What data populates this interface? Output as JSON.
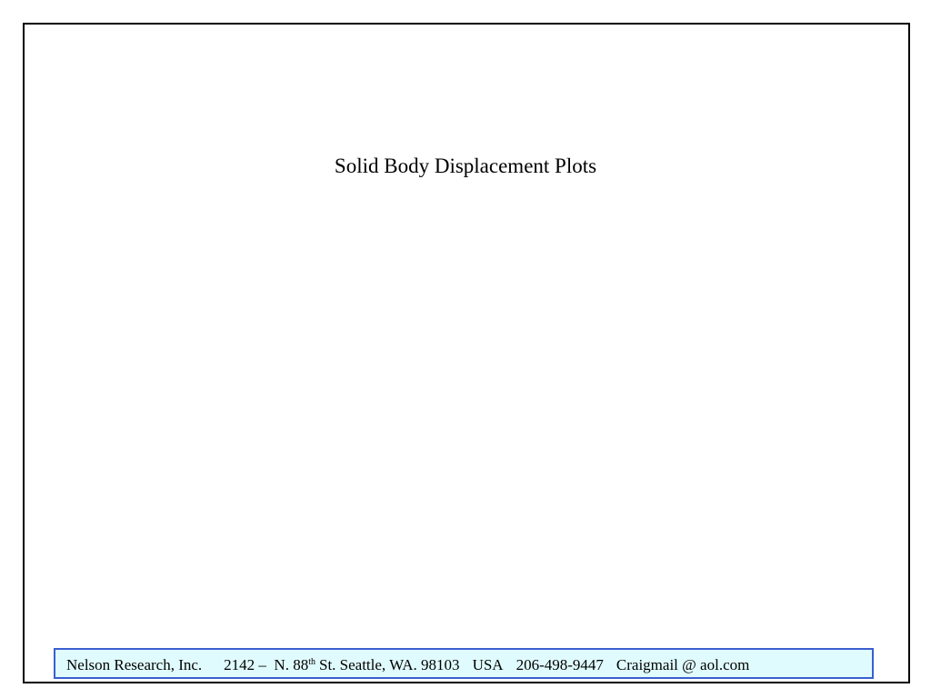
{
  "slide": {
    "title": "Solid Body Displacement Plots",
    "footer": {
      "company": "Nelson Research, Inc.",
      "address_start": "2142 –  N. 88",
      "address_superscript": "th",
      "address_end": "St. Seattle, WA. 98103",
      "country": "USA",
      "phone": "206-498-9447",
      "email": "Craigmail @ aol.com"
    }
  }
}
